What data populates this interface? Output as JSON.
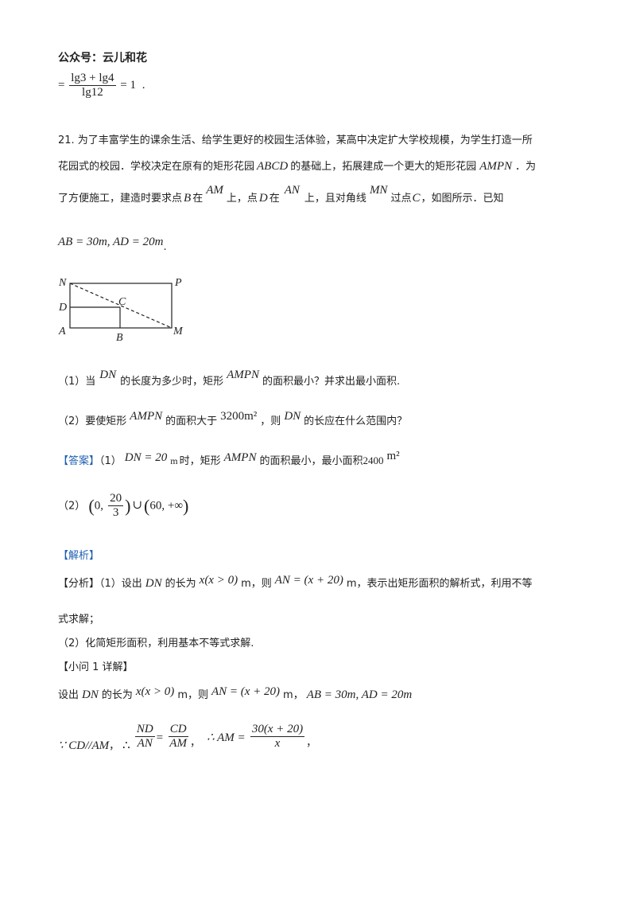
{
  "header": {
    "watermark": "公众号：云儿和花"
  },
  "prev": {
    "eq": "=",
    "num": "lg3 + lg4",
    "den": "lg12",
    "tail": "= 1",
    "dot": "."
  },
  "q21": {
    "line1": "21. 为了丰富学生的课余生活、给学生更好的校园生活体验，某高中决定扩大学校规模，为学生打造一所",
    "line2a": "花园式的校园．学校决定在原有的矩形花园",
    "line2b": "ABCD",
    "line2c": "的基础上，拓展建成一个更大的矩形花园",
    "line2d": "AMPN",
    "line2e": "．为",
    "line3a": "了方便施工，建造时要求点",
    "line3b": "B",
    "line3c": "在",
    "line3d": "AM",
    "line3e": "上，点",
    "line3f": "D",
    "line3g": "在",
    "line3h": "AN",
    "line3i": "上，且对角线",
    "line3j": "MN",
    "line3k": "过点",
    "line3l": "C",
    "line3m": "，如图所示．已知",
    "given": "AB = 30m, AD = 20m",
    "given_dot": "."
  },
  "figure": {
    "labels": {
      "N": "N",
      "P": "P",
      "D": "D",
      "C": "C",
      "A": "A",
      "B": "B",
      "M": "M"
    }
  },
  "part1": {
    "a": "（1）当",
    "b": "DN",
    "c": "的长度为多少时，矩形",
    "d": "AMPN",
    "e": "的面积最小？并求出最小面积."
  },
  "part2": {
    "a": "（2）要使矩形",
    "b": "AMPN",
    "c": "的面积大于",
    "d": "3200m²",
    "e": "，则",
    "f": "DN",
    "g": "的长应在什么范围内？"
  },
  "answer": {
    "tag": "【答案】",
    "a1": "（1）",
    "a2": "DN = 20",
    "a3": "m",
    "a4": "时，矩形",
    "a5": "AMPN",
    "a6": "的面积最小，最小面积",
    "a7": "2400",
    "a8": "m²",
    "b1": "（2）",
    "b_num": "20",
    "b_den": "3",
    "b_zero": "0,",
    "b_union": "∪",
    "b_rest": "60, +∞"
  },
  "analysis": {
    "tag": "【解析】",
    "fenxi_tag": "【分析】",
    "f1": "（1）设出",
    "f2": "DN",
    "f3": "的长为",
    "f4": "x(x > 0)",
    "f5": "m，则",
    "f6": "AN = (x + 20)",
    "f7": "m，表示出矩形面积的解析式，利用不等",
    "f8": "式求解；",
    "f9": "（2）化简矩形面积，利用基本不等式求解.",
    "xiao_tag": "【小问 1 详解】",
    "s1": "设出",
    "s2": "DN",
    "s3": "的长为",
    "s4": "x(x > 0)",
    "s5": "m，则",
    "s6": "AN = (x + 20)",
    "s7": "m，",
    "s8": "AB = 30m, AD = 20m",
    "t1": "∵ CD//AM",
    "t2": "，",
    "t3": "∴",
    "t_nd": "ND",
    "t_an": "AN",
    "t_eq": "=",
    "t_cd": "CD",
    "t_am": "AM",
    "t4": "，",
    "t5": "∴ AM =",
    "t_num": "30(x + 20)",
    "t_den": "x",
    "t6": "，"
  }
}
